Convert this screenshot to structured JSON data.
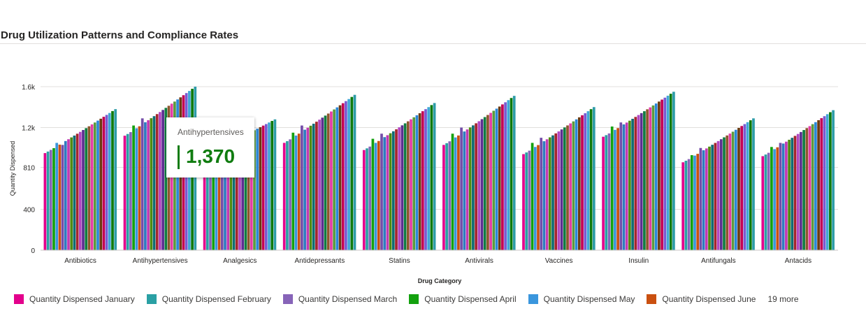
{
  "title": "Drug Utilization Patterns and Compliance Rates",
  "colors": {
    "series": [
      "#e3008c",
      "#2aa0a4",
      "#8764b8",
      "#13a10e",
      "#3a96dd",
      "#ca5010",
      "#744da9",
      "#2f7bbf",
      "#c239b3",
      "#4f8a10",
      "#0f6c74",
      "#a4262c",
      "#b146c2",
      "#5c2e91",
      "#107c41",
      "#8e562e",
      "#e43ba6",
      "#5c9a3c",
      "#2b88d8",
      "#6b3a11",
      "#c30052",
      "#7a5ad1",
      "#3fa7d6",
      "#0e7a0d",
      "#2d9ca8"
    ]
  },
  "legend": {
    "items": [
      {
        "label": "Quantity Dispensed January",
        "color": "#e3008c"
      },
      {
        "label": "Quantity Dispensed February",
        "color": "#2aa0a4"
      },
      {
        "label": "Quantity Dispensed March",
        "color": "#8764b8"
      },
      {
        "label": "Quantity Dispensed April",
        "color": "#13a10e"
      },
      {
        "label": "Quantity Dispensed May",
        "color": "#3a96dd"
      },
      {
        "label": "Quantity Dispensed June",
        "color": "#ca5010"
      }
    ],
    "more": "19 more"
  },
  "tooltip": {
    "label": "Antihypertensives",
    "value": "1,370"
  },
  "chart_data": {
    "type": "bar",
    "xlabel": "Drug Category",
    "ylabel": "Quantity Dispensed",
    "ylim": [
      0,
      1600
    ],
    "yticks": [
      0,
      400,
      810,
      1200,
      1600
    ],
    "ytick_labels": [
      "0",
      "400",
      "810",
      "1.2k",
      "1.6k"
    ],
    "grid": true,
    "legend_position": "bottom-left",
    "categories": [
      "Antibiotics",
      "Antihypertensives",
      "Analgesics",
      "Antidepressants",
      "Statins",
      "Antivirals",
      "Vaccines",
      "Insulin",
      "Antifungals",
      "Antacids"
    ],
    "series_count": 25,
    "category_ranges": [
      {
        "start": 950,
        "end": 1380,
        "spike": [
          [
            4,
            1050
          ],
          [
            6,
            1030
          ]
        ]
      },
      {
        "start": 1120,
        "end": 1600,
        "spike": [
          [
            3,
            1220
          ],
          [
            6,
            1290
          ]
        ]
      },
      {
        "start": 930,
        "end": 1280,
        "spike": [
          [
            3,
            1050
          ],
          [
            6,
            1020
          ]
        ]
      },
      {
        "start": 1050,
        "end": 1520,
        "spike": [
          [
            3,
            1150
          ],
          [
            6,
            1220
          ]
        ]
      },
      {
        "start": 980,
        "end": 1440,
        "spike": [
          [
            3,
            1090
          ],
          [
            6,
            1140
          ]
        ]
      },
      {
        "start": 1030,
        "end": 1510,
        "spike": [
          [
            3,
            1140
          ],
          [
            6,
            1200
          ]
        ]
      },
      {
        "start": 940,
        "end": 1400,
        "spike": [
          [
            3,
            1050
          ],
          [
            6,
            1100
          ]
        ]
      },
      {
        "start": 1110,
        "end": 1550,
        "spike": [
          [
            3,
            1210
          ],
          [
            6,
            1250
          ]
        ]
      },
      {
        "start": 860,
        "end": 1290,
        "spike": [
          [
            3,
            930
          ],
          [
            6,
            1000
          ]
        ]
      },
      {
        "start": 920,
        "end": 1370,
        "spike": [
          [
            3,
            1010
          ],
          [
            6,
            1050
          ]
        ]
      }
    ]
  }
}
